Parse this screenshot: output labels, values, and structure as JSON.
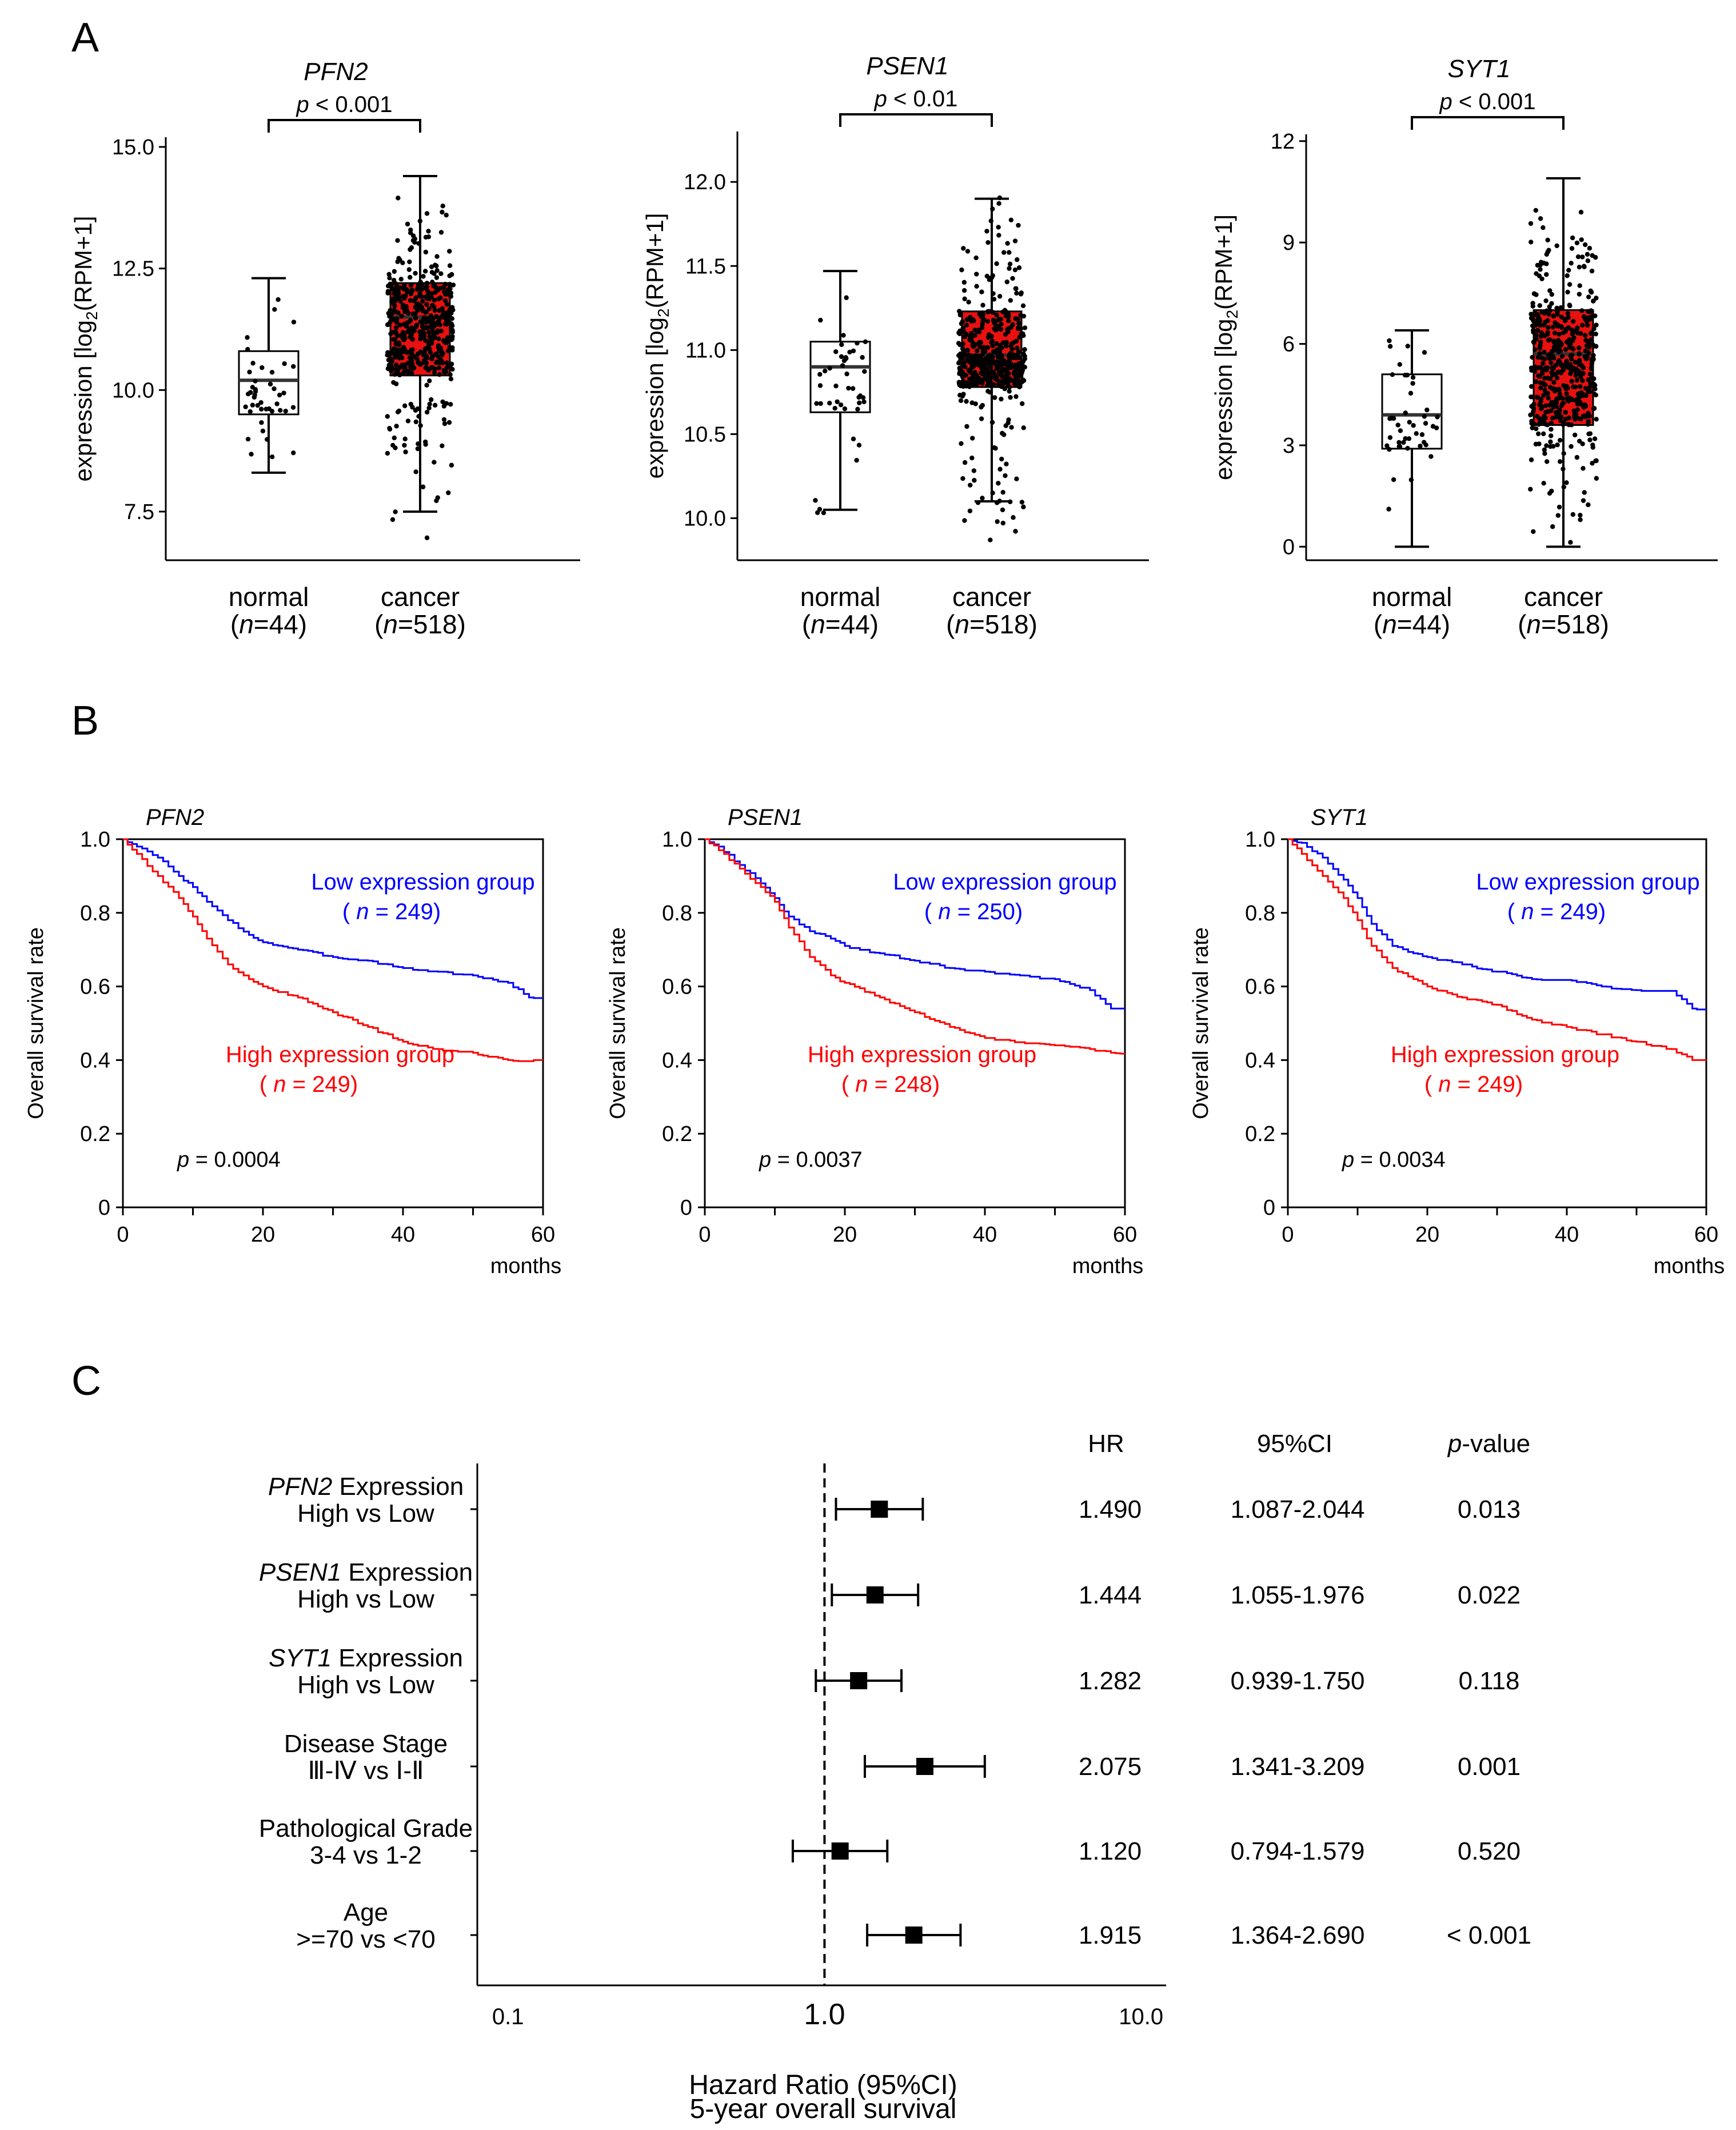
{
  "panels": {
    "a": "A",
    "b": "B",
    "c": "C"
  },
  "chart_data": [
    {
      "type": "box",
      "panel": "A",
      "title": "PFN2",
      "ylabel": "expression [log2(RPM+1)]",
      "ylabel_parts": [
        "expression [log",
        "2",
        "(RPM+1]"
      ],
      "ylim": [
        6.5,
        15.2
      ],
      "yticks": [
        7.5,
        10.0,
        12.5,
        15.0
      ],
      "ytick_labels": [
        "7.5",
        "10.0",
        "12.5",
        "15.0"
      ],
      "sig": {
        "p_label": "p",
        "rest": " < 0.001"
      },
      "groups": [
        {
          "label": "normal",
          "n_label": "(n=44)",
          "n_italic": "n",
          "n_rest": "=44",
          "fill": "#ffffff",
          "whisker_low": 8.3,
          "q1": 9.5,
          "median": 10.2,
          "q3": 10.8,
          "whisker_high": 12.3,
          "n_points": 44,
          "spread_low": 8.4,
          "spread_high": 12.2
        },
        {
          "label": "cancer",
          "n_label": "(n=518)",
          "n_italic": "n",
          "n_rest": "=518",
          "fill": "#e8110f",
          "whisker_low": 7.5,
          "q1": 10.3,
          "median": 11.5,
          "q3": 12.2,
          "whisker_high": 14.4,
          "n_points": 518,
          "spread_low": 6.7,
          "spread_high": 14.2
        }
      ]
    },
    {
      "type": "box",
      "panel": "A",
      "title": "PSEN1",
      "ylabel": "expression [log2(RPM+1)]",
      "ylabel_parts": [
        "expression [log",
        "2",
        "(RPM+1]"
      ],
      "ylim": [
        9.75,
        12.3
      ],
      "yticks": [
        10.0,
        10.5,
        11.0,
        11.5,
        12.0
      ],
      "ytick_labels": [
        "10.0",
        "10.5",
        "11.0",
        "11.5",
        "12.0"
      ],
      "sig": {
        "p_label": "p",
        "rest": " < 0.01"
      },
      "groups": [
        {
          "label": "normal",
          "n_label": "(n=44)",
          "n_italic": "n",
          "n_rest": "=44",
          "fill": "#ffffff",
          "whisker_low": 10.05,
          "q1": 10.63,
          "median": 10.9,
          "q3": 11.05,
          "whisker_high": 11.47,
          "n_points": 44,
          "spread_low": 9.87,
          "spread_high": 11.35
        },
        {
          "label": "cancer",
          "n_label": "(n=518)",
          "n_italic": "n",
          "n_rest": "=518",
          "fill": "#e8110f",
          "whisker_low": 10.1,
          "q1": 10.78,
          "median": 10.97,
          "q3": 11.23,
          "whisker_high": 11.9,
          "n_points": 518,
          "spread_low": 9.78,
          "spread_high": 12.0
        }
      ]
    },
    {
      "type": "box",
      "panel": "A",
      "title": "SYT1",
      "ylabel": "expression [log2(RPM+1)]",
      "ylabel_parts": [
        "expression [log",
        "2",
        "(RPM+1]"
      ],
      "ylim": [
        -0.4,
        12.2
      ],
      "yticks": [
        0,
        3,
        6,
        9,
        12
      ],
      "ytick_labels": [
        "0",
        "3",
        "6",
        "9",
        "12"
      ],
      "sig": {
        "p_label": "p",
        "rest": " < 0.001"
      },
      "groups": [
        {
          "label": "normal",
          "n_label": "(n=44)",
          "n_italic": "n",
          "n_rest": "=44",
          "fill": "#ffffff",
          "whisker_low": 0.0,
          "q1": 2.9,
          "median": 3.9,
          "q3": 5.1,
          "whisker_high": 6.4,
          "n_points": 44,
          "spread_low": 0.2,
          "spread_high": 6.3
        },
        {
          "label": "cancer",
          "n_label": "(n=518)",
          "n_italic": "n",
          "n_rest": "=518",
          "fill": "#e8110f",
          "whisker_low": 0.0,
          "q1": 3.6,
          "median": 5.7,
          "q3": 7.0,
          "whisker_high": 10.9,
          "n_points": 518,
          "spread_low": 0.0,
          "spread_high": 10.2
        }
      ]
    },
    {
      "type": "line",
      "panel": "B",
      "title": "PFN2",
      "ylabel": "Overall survival rate",
      "xlabel": "months",
      "xlim": [
        0,
        60
      ],
      "ylim": [
        0,
        1.0
      ],
      "xticks": [
        0,
        20,
        40,
        60
      ],
      "xtick_labels": [
        "0",
        "20",
        "40",
        "60"
      ],
      "yticks": [
        0,
        0.2,
        0.4,
        0.6,
        0.8,
        1.0
      ],
      "ytick_labels": [
        "0",
        "0.2",
        "0.4",
        "0.6",
        "0.8",
        "1.0"
      ],
      "p_value": {
        "italic": "p",
        "rest": " = 0.0004"
      },
      "series": [
        {
          "name": "Low expression group",
          "n_text": "( ",
          "n_italic": "n",
          "n_rest": " = 249)",
          "color": "#0000ff",
          "x": [
            0,
            2,
            5,
            8,
            10,
            12,
            15,
            18,
            20,
            25,
            30,
            35,
            40,
            45,
            50,
            55,
            58,
            60
          ],
          "y": [
            1.0,
            0.98,
            0.95,
            0.9,
            0.87,
            0.83,
            0.78,
            0.74,
            0.72,
            0.7,
            0.68,
            0.67,
            0.65,
            0.64,
            0.63,
            0.61,
            0.57,
            0.57
          ]
        },
        {
          "name": "High expression group",
          "n_text": "( ",
          "n_italic": "n",
          "n_rest": " = 249)",
          "color": "#ff0000",
          "x": [
            0,
            2,
            5,
            8,
            10,
            12,
            15,
            18,
            20,
            25,
            30,
            35,
            40,
            45,
            50,
            55,
            58,
            60
          ],
          "y": [
            1.0,
            0.96,
            0.9,
            0.84,
            0.79,
            0.73,
            0.66,
            0.62,
            0.6,
            0.57,
            0.53,
            0.49,
            0.45,
            0.43,
            0.42,
            0.4,
            0.4,
            0.4
          ]
        }
      ]
    },
    {
      "type": "line",
      "panel": "B",
      "title": "PSEN1",
      "ylabel": "Overall survival rate",
      "xlabel": "months",
      "xlim": [
        0,
        60
      ],
      "ylim": [
        0,
        1.0
      ],
      "xticks": [
        0,
        20,
        40,
        60
      ],
      "xtick_labels": [
        "0",
        "20",
        "40",
        "60"
      ],
      "yticks": [
        0,
        0.2,
        0.4,
        0.6,
        0.8,
        1.0
      ],
      "ytick_labels": [
        "0",
        "0.2",
        "0.4",
        "0.6",
        "0.8",
        "1.0"
      ],
      "p_value": {
        "italic": "p",
        "rest": " = 0.0037"
      },
      "series": [
        {
          "name": "Low expression group",
          "n_text": "( ",
          "n_italic": "n",
          "n_rest": " = 250)",
          "color": "#0000ff",
          "x": [
            0,
            2,
            5,
            8,
            10,
            12,
            15,
            18,
            20,
            25,
            30,
            35,
            40,
            45,
            50,
            55,
            58,
            60
          ],
          "y": [
            1.0,
            0.98,
            0.93,
            0.88,
            0.84,
            0.79,
            0.75,
            0.73,
            0.71,
            0.69,
            0.67,
            0.65,
            0.64,
            0.63,
            0.62,
            0.59,
            0.54,
            0.54
          ]
        },
        {
          "name": "High expression group",
          "n_text": "( ",
          "n_italic": "n",
          "n_rest": " = 248)",
          "color": "#ff0000",
          "x": [
            0,
            2,
            5,
            8,
            10,
            12,
            15,
            18,
            20,
            25,
            30,
            35,
            40,
            45,
            50,
            55,
            58,
            60
          ],
          "y": [
            1.0,
            0.97,
            0.92,
            0.87,
            0.83,
            0.76,
            0.68,
            0.63,
            0.61,
            0.57,
            0.53,
            0.49,
            0.46,
            0.45,
            0.44,
            0.43,
            0.42,
            0.42
          ]
        }
      ]
    },
    {
      "type": "line",
      "panel": "B",
      "title": "SYT1",
      "ylabel": "Overall survival rate",
      "xlabel": "months",
      "xlim": [
        0,
        60
      ],
      "ylim": [
        0,
        1.0
      ],
      "xticks": [
        0,
        20,
        40,
        60
      ],
      "xtick_labels": [
        "0",
        "20",
        "40",
        "60"
      ],
      "yticks": [
        0,
        0.2,
        0.4,
        0.6,
        0.8,
        1.0
      ],
      "ytick_labels": [
        "0",
        "0.2",
        "0.4",
        "0.6",
        "0.8",
        "1.0"
      ],
      "p_value": {
        "italic": "p",
        "rest": " = 0.0034"
      },
      "series": [
        {
          "name": "Low expression group",
          "n_text": "( ",
          "n_italic": "n",
          "n_rest": " = 249)",
          "color": "#0000ff",
          "x": [
            0,
            2,
            5,
            8,
            10,
            12,
            15,
            18,
            20,
            25,
            30,
            35,
            40,
            45,
            50,
            55,
            58,
            60
          ],
          "y": [
            1.0,
            0.99,
            0.95,
            0.89,
            0.84,
            0.77,
            0.71,
            0.69,
            0.68,
            0.66,
            0.64,
            0.62,
            0.62,
            0.6,
            0.59,
            0.59,
            0.54,
            0.54
          ]
        },
        {
          "name": "High expression group",
          "n_text": "( ",
          "n_italic": "n",
          "n_rest": " = 249)",
          "color": "#ff0000",
          "x": [
            0,
            2,
            5,
            8,
            10,
            12,
            15,
            18,
            20,
            25,
            30,
            35,
            40,
            45,
            50,
            55,
            58,
            60
          ],
          "y": [
            1.0,
            0.96,
            0.9,
            0.84,
            0.78,
            0.71,
            0.65,
            0.62,
            0.6,
            0.57,
            0.55,
            0.51,
            0.49,
            0.47,
            0.45,
            0.43,
            0.4,
            0.4
          ]
        }
      ]
    },
    {
      "type": "forest",
      "panel": "C",
      "xscale": "log",
      "xlim": [
        0.08,
        12
      ],
      "xticks": [
        0.1,
        1.0,
        10.0
      ],
      "xtick_labels": [
        "0.1",
        "1.0",
        "10.0"
      ],
      "xlabel_lines": [
        "Hazard Ratio (95%CI)",
        "5-year overall survival"
      ],
      "columns": {
        "hr": "HR",
        "ci": "95%CI",
        "p_italic": "p",
        "p_rest": "-value"
      },
      "rows": [
        {
          "label_italic": "PFN2",
          "label_rest": " Expression",
          "label2": "High vs Low",
          "hr": 1.49,
          "lo": 1.087,
          "hi": 2.044,
          "hr_text": "1.490",
          "ci_text": "1.087-2.044",
          "p_text": "0.013"
        },
        {
          "label_italic": "PSEN1",
          "label_rest": " Expression",
          "label2": "High vs Low",
          "hr": 1.444,
          "lo": 1.055,
          "hi": 1.976,
          "hr_text": "1.444",
          "ci_text": "1.055-1.976",
          "p_text": "0.022"
        },
        {
          "label_italic": "SYT1",
          "label_rest": " Expression",
          "label2": "High vs Low",
          "hr": 1.282,
          "lo": 0.939,
          "hi": 1.75,
          "hr_text": "1.282",
          "ci_text": "0.939-1.750",
          "p_text": "0.118"
        },
        {
          "label_italic": "",
          "label_rest": "Disease Stage",
          "label2": "Ⅲ-Ⅳ vs Ⅰ-Ⅱ",
          "hr": 2.075,
          "lo": 1.341,
          "hi": 3.209,
          "hr_text": "2.075",
          "ci_text": "1.341-3.209",
          "p_text": "0.001"
        },
        {
          "label_italic": "",
          "label_rest": "Pathological Grade",
          "label2": "3-4 vs 1-2",
          "hr": 1.12,
          "lo": 0.794,
          "hi": 1.579,
          "hr_text": "1.120",
          "ci_text": "0.794-1.579",
          "p_text": "0.520"
        },
        {
          "label_italic": "",
          "label_rest": "Age",
          "label2": ">=70 vs <70",
          "hr": 1.915,
          "lo": 1.364,
          "hi": 2.69,
          "hr_text": "1.915",
          "ci_text": "1.364-2.690",
          "p_text": "< 0.001"
        }
      ]
    }
  ]
}
